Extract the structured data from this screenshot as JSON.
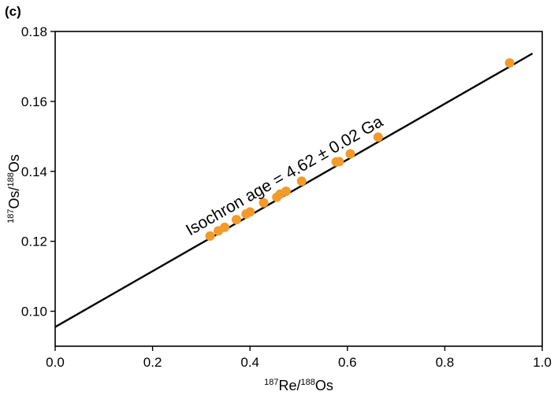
{
  "chart_data": {
    "type": "scatter",
    "panel_label": "(c)",
    "xlabel": {
      "pre": "187",
      "main1": "Re/",
      "sup2": "188",
      "main2": "Os"
    },
    "ylabel": {
      "pre": "187",
      "main1": "Os/",
      "sup2": "188",
      "main2": "Os"
    },
    "xlim": [
      0.0,
      1.0
    ],
    "ylim": [
      0.09,
      0.18
    ],
    "xticks": [
      0.0,
      0.2,
      0.4,
      0.6,
      0.8,
      1.0
    ],
    "xtick_labels": [
      "0.0",
      "0.2",
      "0.4",
      "0.6",
      "0.8",
      "1.0"
    ],
    "yticks": [
      0.1,
      0.12,
      0.14,
      0.16,
      0.18
    ],
    "ytick_labels": [
      "0.10",
      "0.12",
      "0.14",
      "0.16",
      "0.18"
    ],
    "grid": false,
    "point_color": "#f39a2b",
    "line_color": "#000000",
    "points": [
      {
        "x": 0.318,
        "y": 0.1215
      },
      {
        "x": 0.335,
        "y": 0.123
      },
      {
        "x": 0.348,
        "y": 0.124
      },
      {
        "x": 0.372,
        "y": 0.1262
      },
      {
        "x": 0.392,
        "y": 0.1278
      },
      {
        "x": 0.4,
        "y": 0.1284
      },
      {
        "x": 0.428,
        "y": 0.131
      },
      {
        "x": 0.455,
        "y": 0.1326
      },
      {
        "x": 0.462,
        "y": 0.1335
      },
      {
        "x": 0.474,
        "y": 0.1343
      },
      {
        "x": 0.506,
        "y": 0.1372
      },
      {
        "x": 0.577,
        "y": 0.1427
      },
      {
        "x": 0.583,
        "y": 0.1428
      },
      {
        "x": 0.606,
        "y": 0.145
      },
      {
        "x": 0.663,
        "y": 0.1498
      },
      {
        "x": 0.933,
        "y": 0.171
      }
    ],
    "fit_line": {
      "x": [
        0.0,
        0.98
      ],
      "y": [
        0.0955,
        0.1737
      ]
    },
    "annotation": "Isochron age = 4.62 ± 0.02 Ga"
  }
}
